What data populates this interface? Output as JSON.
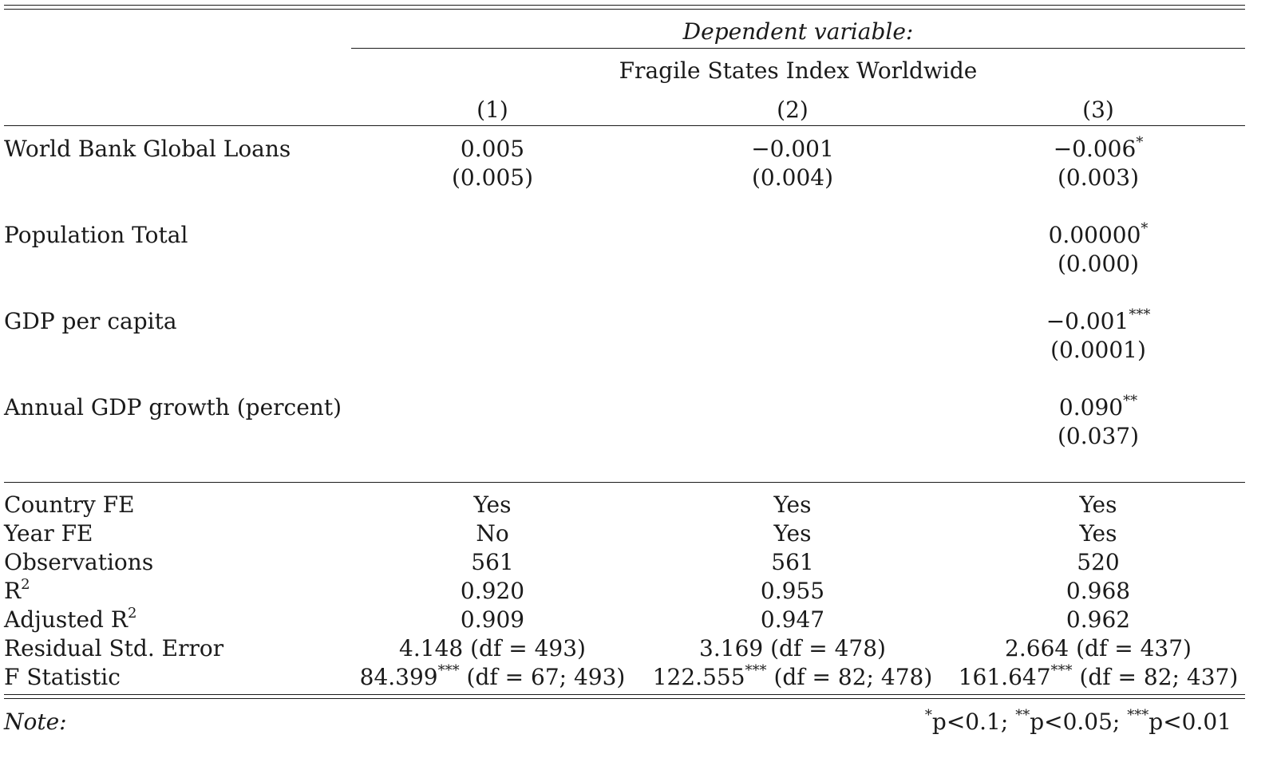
{
  "header": {
    "dependent_label": "Dependent variable:",
    "dependent_name": "Fragile States Index Worldwide",
    "columns": [
      "(1)",
      "(2)",
      "(3)"
    ]
  },
  "coefficients": [
    {
      "label": "World Bank Global Loans",
      "values": [
        "0.005",
        "−0.001",
        "−0.006"
      ],
      "stars": [
        "",
        "",
        "*"
      ],
      "se": [
        "(0.005)",
        "(0.004)",
        "(0.003)"
      ]
    },
    {
      "label": "Population Total",
      "values": [
        "",
        "",
        "0.00000"
      ],
      "stars": [
        "",
        "",
        "*"
      ],
      "se": [
        "",
        "",
        "(0.000)"
      ]
    },
    {
      "label": "GDP per capita",
      "values": [
        "",
        "",
        "−0.001"
      ],
      "stars": [
        "",
        "",
        "***"
      ],
      "se": [
        "",
        "",
        "(0.0001)"
      ]
    },
    {
      "label": "Annual GDP growth (percent)",
      "values": [
        "",
        "",
        "0.090"
      ],
      "stars": [
        "",
        "",
        "**"
      ],
      "se": [
        "",
        "",
        "(0.037)"
      ]
    }
  ],
  "stats": [
    {
      "label": "Country FE",
      "values": [
        "Yes",
        "Yes",
        "Yes"
      ]
    },
    {
      "label": "Year FE",
      "values": [
        "No",
        "Yes",
        "Yes"
      ]
    },
    {
      "label": "Observations",
      "values": [
        "561",
        "561",
        "520"
      ]
    },
    {
      "label": "R",
      "label_sup": "2",
      "values": [
        "0.920",
        "0.955",
        "0.968"
      ]
    },
    {
      "label": "Adjusted R",
      "label_sup": "2",
      "values": [
        "0.909",
        "0.947",
        "0.962"
      ]
    },
    {
      "label": "Residual Std. Error",
      "values": [
        "4.148 (df = 493)",
        "3.169 (df = 478)",
        "2.664 (df = 437)"
      ]
    },
    {
      "label": "F Statistic",
      "values": [
        "84.399",
        "122.555",
        "161.647"
      ],
      "stars": [
        "***",
        "***",
        "***"
      ],
      "df": [
        "(df = 67; 493)",
        "(df = 82; 478)",
        "(df = 82; 437)"
      ]
    }
  ],
  "note": {
    "label": "Note:",
    "items": [
      {
        "stars": "*",
        "text": "p<0.1;"
      },
      {
        "stars": "**",
        "text": "p<0.05;"
      },
      {
        "stars": "***",
        "text": "p<0.01"
      }
    ]
  }
}
